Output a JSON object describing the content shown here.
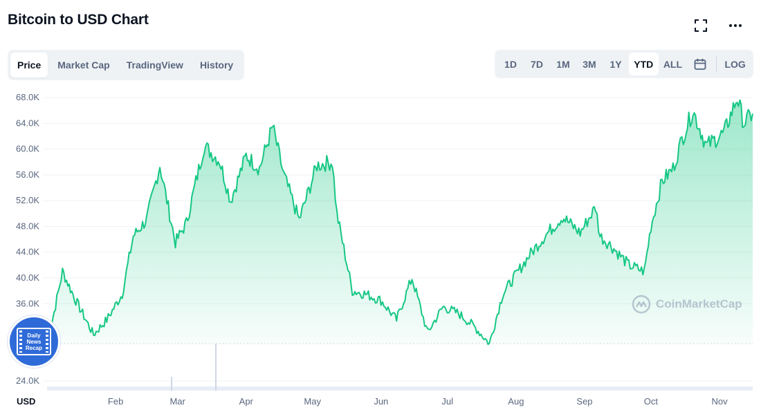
{
  "title": "Bitcoin to USD Chart",
  "tabs": [
    {
      "label": "Price",
      "active": true
    },
    {
      "label": "Market Cap",
      "active": false
    },
    {
      "label": "TradingView",
      "active": false
    },
    {
      "label": "History",
      "active": false
    }
  ],
  "ranges": {
    "items": [
      {
        "label": "1D",
        "active": false
      },
      {
        "label": "7D",
        "active": false
      },
      {
        "label": "1M",
        "active": false
      },
      {
        "label": "3M",
        "active": false
      },
      {
        "label": "1Y",
        "active": false
      },
      {
        "label": "YTD",
        "active": true
      },
      {
        "label": "ALL",
        "active": false
      }
    ],
    "log_label": "LOG"
  },
  "icons": {
    "fullscreen": "fullscreen-icon",
    "more": "more-icon",
    "calendar": "calendar-icon"
  },
  "watermark": "CoinMarketCap",
  "badge": {
    "lines": [
      "Daily",
      "News",
      "Recap"
    ]
  },
  "colors": {
    "line": "#16c784",
    "fill": "#16c784",
    "accent": "#0d1421",
    "muted": "#58667e"
  },
  "chart_data": {
    "type": "area",
    "currency_label": "USD",
    "y_ticks": [
      "68.0K",
      "64.0K",
      "60.0K",
      "56.0K",
      "52.0K",
      "48.0K",
      "44.0K",
      "40.0K",
      "36.0K",
      "24.0K"
    ],
    "x_ticks": [
      "Feb",
      "Mar",
      "Apr",
      "May",
      "Jun",
      "Jul",
      "Aug",
      "Sep",
      "Oct",
      "Nov"
    ],
    "ylim": [
      22500,
      69200
    ],
    "grid": true,
    "series": [
      {
        "x": [
          "2021-01-01",
          "2021-01-08",
          "2021-01-14",
          "2021-01-22",
          "2021-01-28",
          "2021-02-04",
          "2021-02-09",
          "2021-02-15",
          "2021-02-21",
          "2021-02-28",
          "2021-03-05",
          "2021-03-13",
          "2021-03-20",
          "2021-03-25",
          "2021-04-01",
          "2021-04-07",
          "2021-04-13",
          "2021-04-18",
          "2021-04-25",
          "2021-05-03",
          "2021-05-10",
          "2021-05-12",
          "2021-05-19",
          "2021-05-25",
          "2021-06-01",
          "2021-06-08",
          "2021-06-15",
          "2021-06-22",
          "2021-06-29",
          "2021-07-06",
          "2021-07-13",
          "2021-07-20",
          "2021-07-26",
          "2021-08-01",
          "2021-08-07",
          "2021-08-14",
          "2021-08-22",
          "2021-08-30",
          "2021-09-06",
          "2021-09-08",
          "2021-09-13",
          "2021-09-21",
          "2021-09-28",
          "2021-10-01",
          "2021-10-06",
          "2021-10-11",
          "2021-10-15",
          "2021-10-20",
          "2021-10-26",
          "2021-11-03",
          "2021-11-09",
          "2021-11-12",
          "2021-11-16"
        ],
        "values": [
          29400,
          41000,
          36500,
          31200,
          33500,
          37500,
          46500,
          49000,
          57500,
          45500,
          48500,
          60500,
          58200,
          52000,
          59000,
          57000,
          63500,
          56000,
          49000,
          57500,
          58000,
          50000,
          38000,
          37500,
          36500,
          33500,
          40000,
          31500,
          35500,
          34500,
          32500,
          29800,
          37500,
          40500,
          43500,
          46500,
          49500,
          47000,
          51000,
          46500,
          45000,
          42000,
          41000,
          48000,
          55000,
          57000,
          61500,
          66000,
          60500,
          62500,
          68000,
          64000,
          65500
        ]
      }
    ]
  }
}
